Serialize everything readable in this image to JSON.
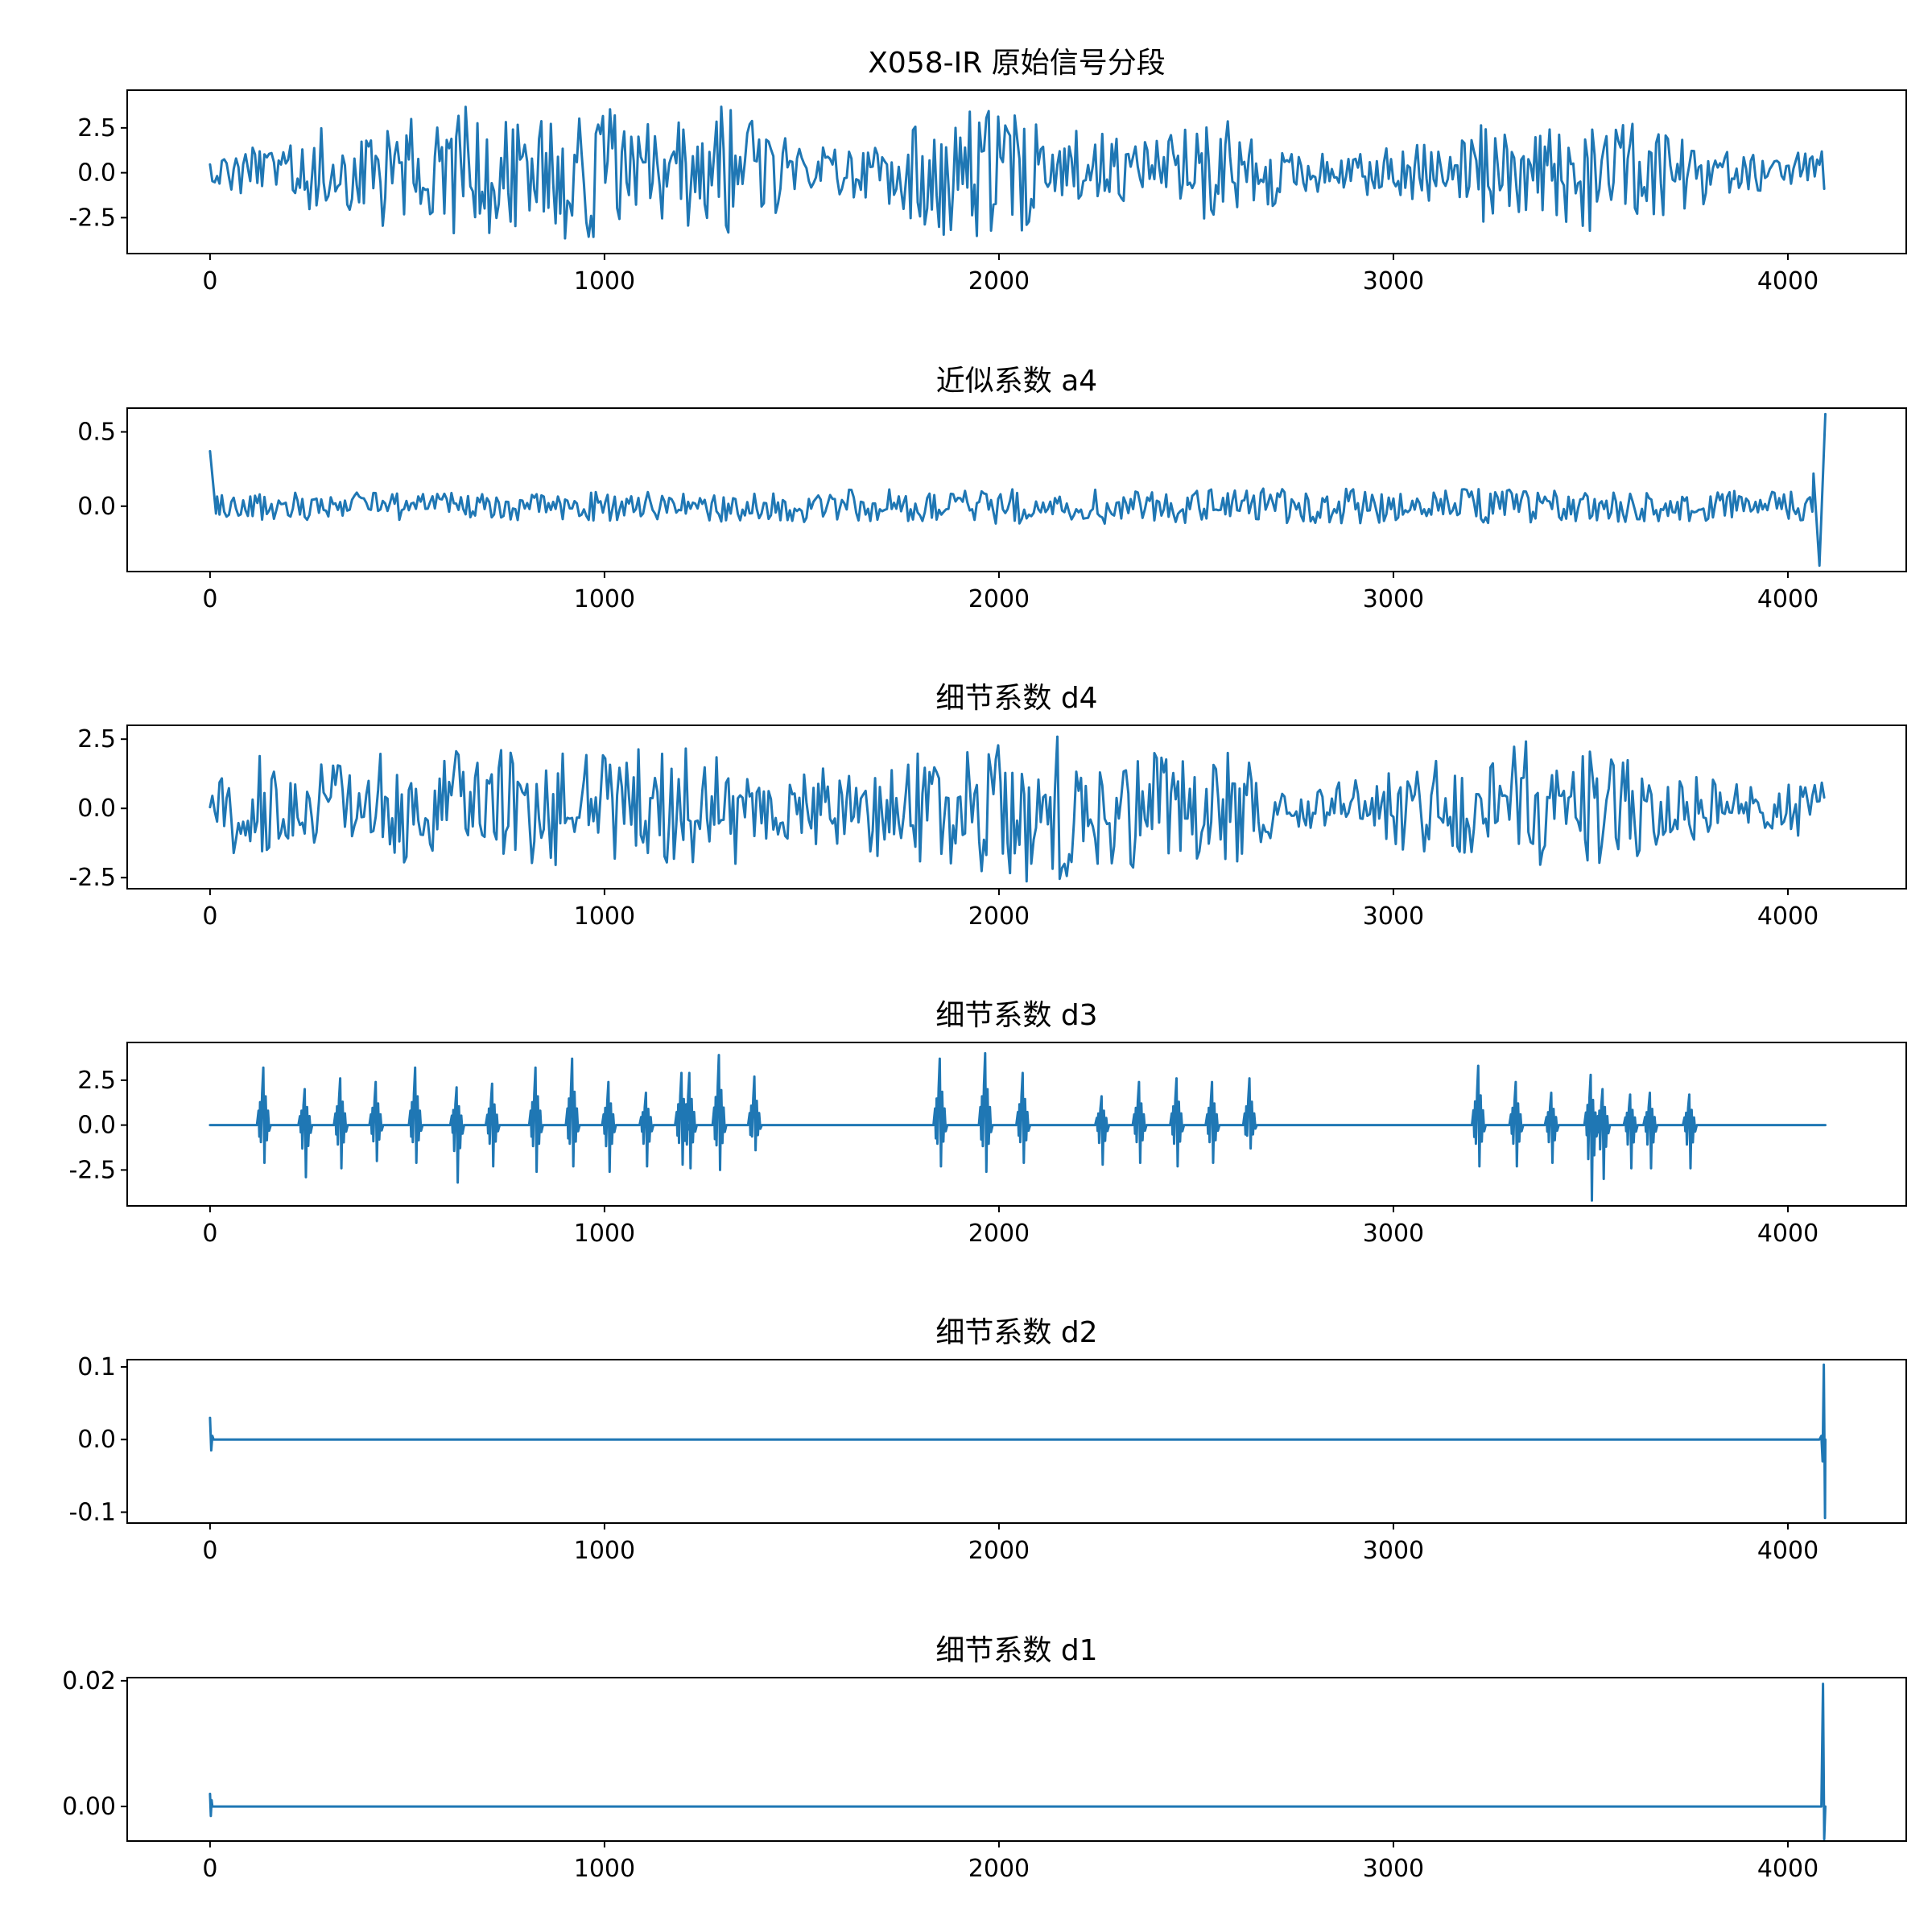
{
  "figure": {
    "line_color": "#1f77b4",
    "background": "#ffffff"
  },
  "chart_data": [
    {
      "type": "line",
      "title": "X058-IR 原始信号分段",
      "xlabel": "",
      "ylabel": "",
      "xlim": [
        -210,
        4300
      ],
      "ylim": [
        -4.5,
        4.6
      ],
      "xticks": [
        0,
        1000,
        2000,
        3000,
        4000
      ],
      "xtick_labels": [
        "0",
        "1000",
        "2000",
        "3000",
        "4000"
      ],
      "yticks": [
        2.5,
        0.0,
        -2.5
      ],
      "ytick_labels": [
        "2.5",
        "0.0",
        "-2.5"
      ],
      "grid": false,
      "x_range": [
        0,
        4095
      ],
      "envelope": [
        [
          0,
          0.8
        ],
        [
          300,
          2.6
        ],
        [
          650,
          3.8
        ],
        [
          900,
          3.8
        ],
        [
          1200,
          3.2
        ],
        [
          1300,
          3.9
        ],
        [
          1500,
          1.6
        ],
        [
          1700,
          1.6
        ],
        [
          1850,
          3.5
        ],
        [
          1960,
          3.9
        ],
        [
          2100,
          3.1
        ],
        [
          2400,
          2.0
        ],
        [
          2600,
          3.3
        ],
        [
          2750,
          1.0
        ],
        [
          2900,
          1.3
        ],
        [
          3100,
          1.8
        ],
        [
          3200,
          3.0
        ],
        [
          3350,
          2.1
        ],
        [
          3500,
          3.5
        ],
        [
          3700,
          2.6
        ],
        [
          3900,
          1.0
        ],
        [
          4095,
          1.2
        ]
      ],
      "series_summary": "oscillating signal"
    },
    {
      "type": "line",
      "title": "近似系数 a4",
      "xlabel": "",
      "ylabel": "",
      "xlim": [
        -210,
        4300
      ],
      "ylim": [
        -0.44,
        0.66
      ],
      "xticks": [
        0,
        1000,
        2000,
        3000,
        4000
      ],
      "xtick_labels": [
        "0",
        "1000",
        "2000",
        "3000",
        "4000"
      ],
      "yticks": [
        0.5,
        0.0
      ],
      "ytick_labels": [
        "0.5",
        "0.0"
      ],
      "grid": false,
      "x_range": [
        0,
        4095
      ],
      "envelope": [
        [
          0,
          0.09
        ],
        [
          1000,
          0.1
        ],
        [
          2000,
          0.12
        ],
        [
          3000,
          0.12
        ],
        [
          4000,
          0.1
        ],
        [
          4095,
          0.1
        ]
      ],
      "edge_points": {
        "start": [
          [
            0,
            0.37
          ],
          [
            15,
            -0.05
          ]
        ],
        "end": [
          [
            4065,
            0.22
          ],
          [
            4080,
            -0.4
          ],
          [
            4095,
            0.62
          ]
        ]
      }
    },
    {
      "type": "line",
      "title": "细节系数 d4",
      "xlabel": "",
      "ylabel": "",
      "xlim": [
        -210,
        4300
      ],
      "ylim": [
        -2.9,
        3.0
      ],
      "xticks": [
        0,
        1000,
        2000,
        3000,
        4000
      ],
      "xtick_labels": [
        "0",
        "1000",
        "2000",
        "3000",
        "4000"
      ],
      "yticks": [
        2.5,
        0.0,
        -2.5
      ],
      "ytick_labels": [
        "2.5",
        "0.0",
        "-2.5"
      ],
      "grid": false,
      "x_range": [
        0,
        4095
      ],
      "envelope": [
        [
          0,
          0.3
        ],
        [
          60,
          2.0
        ],
        [
          300,
          1.6
        ],
        [
          450,
          2.1
        ],
        [
          900,
          2.2
        ],
        [
          1100,
          2.2
        ],
        [
          1300,
          2.3
        ],
        [
          1500,
          1.3
        ],
        [
          1800,
          2.1
        ],
        [
          2100,
          2.7
        ],
        [
          2400,
          2.1
        ],
        [
          2600,
          2.0
        ],
        [
          2750,
          0.7
        ],
        [
          2900,
          1.1
        ],
        [
          3100,
          1.8
        ],
        [
          3300,
          2.6
        ],
        [
          3600,
          1.8
        ],
        [
          3900,
          0.8
        ],
        [
          4095,
          1.1
        ]
      ]
    },
    {
      "type": "line",
      "title": "细节系数 d3",
      "xlabel": "",
      "ylabel": "",
      "xlim": [
        -210,
        4300
      ],
      "ylim": [
        -4.5,
        4.6
      ],
      "xticks": [
        0,
        1000,
        2000,
        3000,
        4000
      ],
      "xtick_labels": [
        "0",
        "1000",
        "2000",
        "3000",
        "4000"
      ],
      "yticks": [
        2.5,
        0.0,
        -2.5
      ],
      "ytick_labels": [
        "2.5",
        "0.0",
        "-2.5"
      ],
      "grid": false,
      "x_range": [
        0,
        4095
      ],
      "bursts": [
        [
          135,
          3.2,
          -2.1
        ],
        [
          240,
          2.0,
          -2.9
        ],
        [
          330,
          2.6,
          -2.4
        ],
        [
          420,
          2.4,
          -2.0
        ],
        [
          520,
          3.2,
          -2.1
        ],
        [
          625,
          2.1,
          -3.2
        ],
        [
          715,
          2.3,
          -2.3
        ],
        [
          825,
          3.2,
          -2.6
        ],
        [
          918,
          3.7,
          -2.3
        ],
        [
          1010,
          2.4,
          -2.6
        ],
        [
          1105,
          1.8,
          -2.3
        ],
        [
          1195,
          2.9,
          -2.2
        ],
        [
          1215,
          2.9,
          -2.4
        ],
        [
          1290,
          3.9,
          -2.5
        ],
        [
          1380,
          2.7,
          -1.4
        ],
        [
          1850,
          3.7,
          -2.3
        ],
        [
          1965,
          4.0,
          -2.6
        ],
        [
          2060,
          2.9,
          -2.1
        ],
        [
          2260,
          1.6,
          -2.2
        ],
        [
          2355,
          2.4,
          -2.1
        ],
        [
          2450,
          2.6,
          -2.3
        ],
        [
          2540,
          2.4,
          -2.1
        ],
        [
          2635,
          2.6,
          -1.3
        ],
        [
          3215,
          3.3,
          -2.3
        ],
        [
          3310,
          2.4,
          -2.3
        ],
        [
          3400,
          1.8,
          -2.1
        ],
        [
          3500,
          2.8,
          -4.2
        ],
        [
          3530,
          2.0,
          -3.0
        ],
        [
          3600,
          1.7,
          -2.4
        ],
        [
          3650,
          1.8,
          -2.4
        ],
        [
          3750,
          1.7,
          -2.4
        ]
      ]
    },
    {
      "type": "line",
      "title": "细节系数 d2",
      "xlabel": "",
      "ylabel": "",
      "xlim": [
        -210,
        4300
      ],
      "ylim": [
        -0.115,
        0.11
      ],
      "xticks": [
        0,
        1000,
        2000,
        3000,
        4000
      ],
      "xtick_labels": [
        "0",
        "1000",
        "2000",
        "3000",
        "4000"
      ],
      "yticks": [
        0.1,
        0.0,
        -0.1
      ],
      "ytick_labels": [
        "0.1",
        "0.0",
        "-0.1"
      ],
      "grid": false,
      "x_range": [
        0,
        4095
      ],
      "edge_points": {
        "start": [
          [
            0,
            0.03
          ],
          [
            3,
            -0.015
          ],
          [
            6,
            0.005
          ],
          [
            9,
            0.0
          ]
        ],
        "end": [
          [
            4080,
            0.0
          ],
          [
            4085,
            0.005
          ],
          [
            4088,
            -0.03
          ],
          [
            4091,
            0.103
          ],
          [
            4094,
            -0.108
          ],
          [
            4095,
            0.0
          ]
        ]
      }
    },
    {
      "type": "line",
      "title": "细节系数 d1",
      "xlabel": "",
      "ylabel": "",
      "xlim": [
        -210,
        4300
      ],
      "ylim": [
        -0.0055,
        0.0205
      ],
      "xticks": [
        0,
        1000,
        2000,
        3000,
        4000
      ],
      "xtick_labels": [
        "0",
        "1000",
        "2000",
        "3000",
        "4000"
      ],
      "yticks": [
        0.02,
        0.0
      ],
      "ytick_labels": [
        "0.02",
        "0.00"
      ],
      "grid": false,
      "x_range": [
        0,
        4095
      ],
      "edge_points": {
        "start": [
          [
            0,
            0.002
          ],
          [
            2,
            -0.0015
          ],
          [
            4,
            0.001
          ],
          [
            6,
            0.0
          ]
        ],
        "end": [
          [
            4085,
            0.0
          ],
          [
            4089,
            0.0195
          ],
          [
            4092,
            -0.0052
          ],
          [
            4095,
            0.0
          ]
        ]
      }
    }
  ]
}
